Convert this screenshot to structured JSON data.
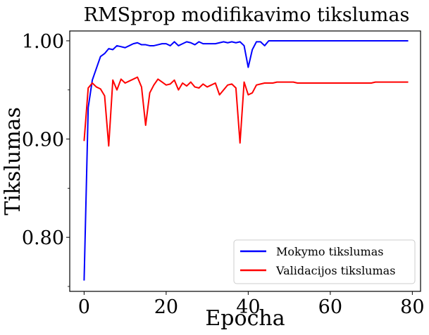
{
  "chart_data": {
    "type": "line",
    "title": "RMSprop modifikavimo tikslumas",
    "xlabel": "Epocha",
    "ylabel": "Tikslumas",
    "xlim": [
      -3.5,
      82
    ],
    "ylim": [
      0.745,
      1.01
    ],
    "xticks": [
      0,
      20,
      40,
      60,
      80
    ],
    "xtick_labels": [
      "0",
      "20",
      "40",
      "60",
      "80"
    ],
    "yticks": [
      0.8,
      0.9,
      1.0
    ],
    "ytick_labels": [
      "0.80",
      "0.90",
      "1.00"
    ],
    "yminor_ticks": [
      0.75,
      0.85,
      0.95
    ],
    "grid": false,
    "legend_position": "lower-right",
    "series": [
      {
        "name": "Mokymo tikslumas",
        "color": "#0000ff",
        "x": [
          0,
          1,
          2,
          3,
          4,
          5,
          6,
          7,
          8,
          9,
          10,
          11,
          12,
          13,
          14,
          15,
          16,
          17,
          18,
          19,
          20,
          21,
          22,
          23,
          24,
          25,
          26,
          27,
          28,
          29,
          30,
          31,
          32,
          33,
          34,
          35,
          36,
          37,
          38,
          39,
          40,
          41,
          42,
          43,
          44,
          45,
          46,
          47,
          48,
          49,
          50,
          51,
          52,
          53,
          54,
          55,
          56,
          57,
          58,
          59,
          60,
          61,
          62,
          63,
          64,
          65,
          66,
          67,
          68,
          69,
          70,
          71,
          72,
          73,
          74,
          75,
          76,
          77,
          78,
          79
        ],
        "values": [
          0.756,
          0.932,
          0.96,
          0.972,
          0.984,
          0.987,
          0.992,
          0.991,
          0.995,
          0.994,
          0.993,
          0.995,
          0.997,
          0.998,
          0.996,
          0.996,
          0.995,
          0.995,
          0.996,
          0.997,
          0.997,
          0.995,
          0.999,
          0.995,
          0.997,
          0.999,
          0.998,
          0.996,
          0.999,
          0.997,
          0.997,
          0.997,
          0.997,
          0.998,
          0.999,
          0.998,
          0.999,
          0.998,
          0.999,
          0.995,
          0.973,
          0.991,
          0.999,
          0.999,
          0.995,
          1.0,
          1.0,
          1.0,
          1.0,
          1.0,
          1.0,
          1.0,
          1.0,
          1.0,
          1.0,
          1.0,
          1.0,
          1.0,
          1.0,
          1.0,
          1.0,
          1.0,
          1.0,
          1.0,
          1.0,
          1.0,
          1.0,
          1.0,
          1.0,
          1.0,
          1.0,
          1.0,
          1.0,
          1.0,
          1.0,
          1.0,
          1.0,
          1.0,
          1.0,
          1.0
        ]
      },
      {
        "name": "Validacijos tikslumas",
        "color": "#ff0000",
        "x": [
          0,
          1,
          2,
          3,
          4,
          5,
          6,
          7,
          8,
          9,
          10,
          11,
          12,
          13,
          14,
          15,
          16,
          17,
          18,
          19,
          20,
          21,
          22,
          23,
          24,
          25,
          26,
          27,
          28,
          29,
          30,
          31,
          32,
          33,
          34,
          35,
          36,
          37,
          38,
          39,
          40,
          41,
          42,
          43,
          44,
          45,
          46,
          47,
          48,
          49,
          50,
          51,
          52,
          53,
          54,
          55,
          56,
          57,
          58,
          59,
          60,
          61,
          62,
          63,
          64,
          65,
          66,
          67,
          68,
          69,
          70,
          71,
          72,
          73,
          74,
          75,
          76,
          77,
          78,
          79
        ],
        "values": [
          0.898,
          0.952,
          0.957,
          0.953,
          0.951,
          0.944,
          0.893,
          0.96,
          0.95,
          0.961,
          0.957,
          0.959,
          0.961,
          0.963,
          0.953,
          0.914,
          0.947,
          0.955,
          0.961,
          0.958,
          0.955,
          0.956,
          0.96,
          0.95,
          0.957,
          0.954,
          0.958,
          0.953,
          0.952,
          0.956,
          0.953,
          0.955,
          0.957,
          0.945,
          0.95,
          0.955,
          0.956,
          0.952,
          0.896,
          0.958,
          0.945,
          0.947,
          0.955,
          0.956,
          0.957,
          0.957,
          0.957,
          0.958,
          0.958,
          0.958,
          0.958,
          0.958,
          0.957,
          0.957,
          0.957,
          0.957,
          0.957,
          0.957,
          0.957,
          0.957,
          0.957,
          0.957,
          0.957,
          0.957,
          0.957,
          0.957,
          0.957,
          0.957,
          0.957,
          0.957,
          0.957,
          0.958,
          0.958,
          0.958,
          0.958,
          0.958,
          0.958,
          0.958,
          0.958,
          0.958
        ]
      }
    ]
  }
}
